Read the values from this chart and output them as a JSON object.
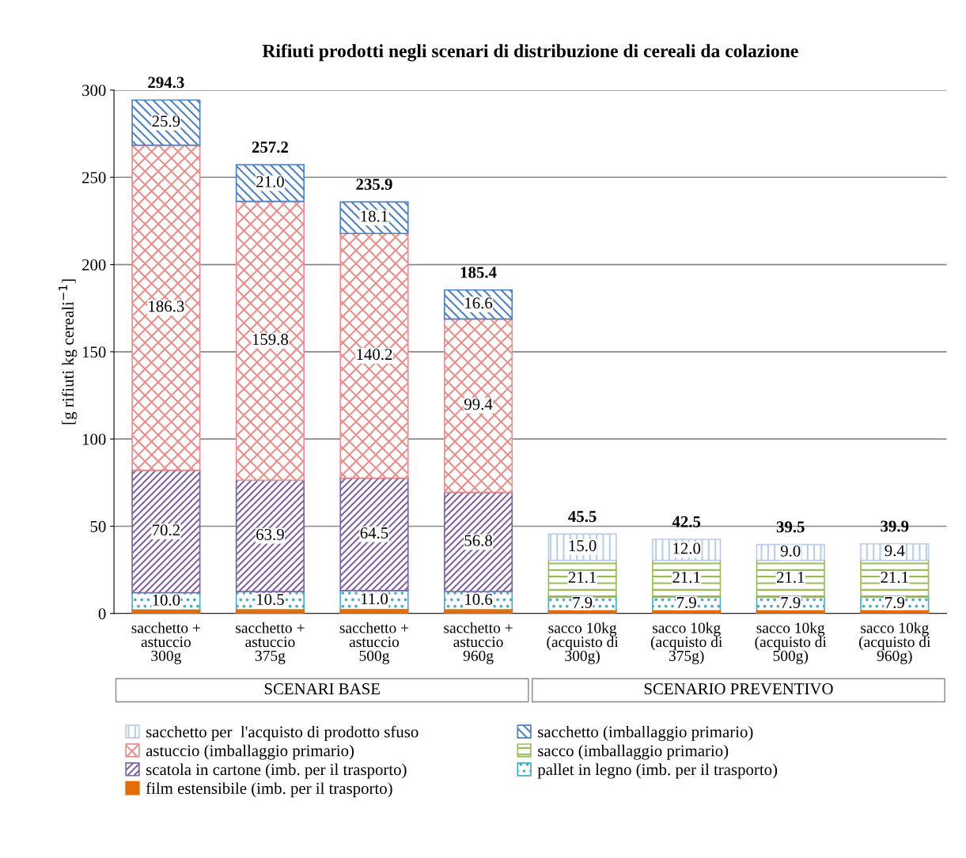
{
  "chart_data": {
    "type": "bar",
    "stacked": true,
    "title": "Rifiuti prodotti negli scenari di distribuzione di cereali da colazione",
    "ylabel": "[g rifiuti kg cereali$^{−1}$]",
    "categories": [
      "sacchetto +\nastuccio\n300g",
      "sacchetto +\nastuccio\n375g",
      "sacchetto +\nastuccio\n500g",
      "sacchetto +\nastuccio\n960g",
      "sacco 10kg\n(acquisto di\n300g)",
      "sacco 10kg\n(acquisto di\n375g)",
      "sacco 10kg\n(acquisto di\n500g)",
      "sacco 10kg\n(acquisto di\n960g)"
    ],
    "series": [
      {
        "name": "film estensibile (imb. per il trasporto)",
        "color": "#e46c0a",
        "values": [
          1.9,
          2.0,
          2.1,
          2.0,
          1.5,
          1.5,
          1.5,
          1.5
        ],
        "value_labels": [
          null,
          null,
          null,
          null,
          null,
          null,
          null,
          null
        ]
      },
      {
        "name": "pallet in legno (imb. per il trasporto)",
        "color": "#4bacc6",
        "values": [
          10.0,
          10.5,
          11.0,
          10.6,
          7.9,
          7.9,
          7.9,
          7.9
        ],
        "value_labels": [
          "10.0",
          "10.5",
          "11.0",
          "10.6",
          "7.9",
          "7.9",
          "7.9",
          "7.9"
        ]
      },
      {
        "name": "scatola in cartone (imb. per il trasporto)",
        "color": "#8064a2",
        "values": [
          70.2,
          63.9,
          64.5,
          56.8,
          null,
          null,
          null,
          null
        ],
        "value_labels": [
          "70.2",
          "63.9",
          "64.5",
          "56.8",
          null,
          null,
          null,
          null
        ]
      },
      {
        "name": "sacco (imballaggio primario)",
        "color": "#9bbb59",
        "values": [
          null,
          null,
          null,
          null,
          21.1,
          21.1,
          21.1,
          21.1
        ],
        "value_labels": [
          null,
          null,
          null,
          null,
          "21.1",
          "21.1",
          "21.1",
          "21.1"
        ]
      },
      {
        "name": "astuccio (imballaggio primario)",
        "color": "#e6908e",
        "values": [
          186.3,
          159.8,
          140.2,
          99.4,
          null,
          null,
          null,
          null
        ],
        "value_labels": [
          "186.3",
          "159.8",
          "140.2",
          "99.4",
          null,
          null,
          null,
          null
        ]
      },
      {
        "name": "sacchetto (imballaggio primario)",
        "color": "#4f81bd",
        "values": [
          25.9,
          21.0,
          18.1,
          16.6,
          null,
          null,
          null,
          null
        ],
        "value_labels": [
          "25.9",
          "21.0",
          "18.1",
          "16.6",
          null,
          null,
          null,
          null
        ]
      },
      {
        "name": "sacchetto per  l'acquisto di prodotto sfuso",
        "color": "#b9cde5",
        "values": [
          null,
          null,
          null,
          null,
          15.0,
          12.0,
          9.0,
          9.4
        ],
        "value_labels": [
          null,
          null,
          null,
          null,
          "15.0",
          "12.0",
          "9.0",
          "9.4"
        ]
      }
    ],
    "totals": [
      "294.3",
      "257.2",
      "235.9",
      "185.4",
      "45.5",
      "42.5",
      "39.5",
      "39.9"
    ],
    "annotations": [
      "SCENARI BASE",
      "SCENARIO PREVENTIVO"
    ],
    "ylim": [
      0,
      300
    ],
    "yticks": [
      0,
      50,
      100,
      150,
      200,
      250,
      300
    ],
    "grid": "y",
    "legend": "bottom"
  }
}
